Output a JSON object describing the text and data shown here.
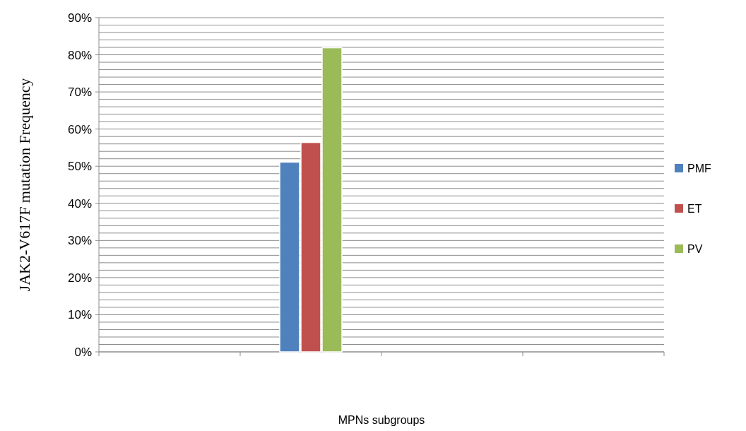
{
  "chart_data": {
    "type": "bar",
    "xlabel": "MPNs subgroups",
    "ylabel": "JAK2-V617F mutation Frequency",
    "categories": [
      null,
      null,
      null,
      null
    ],
    "series": [
      {
        "name": "PMF",
        "color": "#4f81bd",
        "values": [
          null,
          51.1,
          null,
          null
        ]
      },
      {
        "name": "ET",
        "color": "#c0504d",
        "values": [
          null,
          56.4,
          null,
          null
        ]
      },
      {
        "name": "PV",
        "color": "#9bbb59",
        "values": [
          null,
          81.9,
          null,
          null
        ]
      }
    ],
    "ylim": [
      0,
      90
    ],
    "yticks": [
      {
        "value": 0,
        "label": "0%"
      },
      {
        "value": 2,
        "label": null
      },
      {
        "value": 4,
        "label": null
      },
      {
        "value": 6,
        "label": null
      },
      {
        "value": 8,
        "label": null
      },
      {
        "value": 10,
        "label": "10%"
      },
      {
        "value": 12,
        "label": null
      },
      {
        "value": 14,
        "label": null
      },
      {
        "value": 16,
        "label": null
      },
      {
        "value": 18,
        "label": null
      },
      {
        "value": 20,
        "label": "20%"
      },
      {
        "value": 22,
        "label": null
      },
      {
        "value": 24,
        "label": null
      },
      {
        "value": 26,
        "label": null
      },
      {
        "value": 28,
        "label": null
      },
      {
        "value": 30,
        "label": "30%"
      },
      {
        "value": 32,
        "label": null
      },
      {
        "value": 34,
        "label": null
      },
      {
        "value": 36,
        "label": null
      },
      {
        "value": 38,
        "label": null
      },
      {
        "value": 40,
        "label": "40%"
      },
      {
        "value": 42,
        "label": null
      },
      {
        "value": 44,
        "label": null
      },
      {
        "value": 46,
        "label": null
      },
      {
        "value": 48,
        "label": null
      },
      {
        "value": 50,
        "label": "50%"
      },
      {
        "value": 52,
        "label": null
      },
      {
        "value": 54,
        "label": null
      },
      {
        "value": 56,
        "label": null
      },
      {
        "value": 58,
        "label": null
      },
      {
        "value": 60,
        "label": "60%"
      },
      {
        "value": 62,
        "label": null
      },
      {
        "value": 64,
        "label": null
      },
      {
        "value": 66,
        "label": null
      },
      {
        "value": 68,
        "label": null
      },
      {
        "value": 70,
        "label": "70%"
      },
      {
        "value": 72,
        "label": null
      },
      {
        "value": 74,
        "label": null
      },
      {
        "value": 76,
        "label": null
      },
      {
        "value": 78,
        "label": null
      },
      {
        "value": 80,
        "label": "80%"
      },
      {
        "value": 82,
        "label": null
      },
      {
        "value": 84,
        "label": null
      },
      {
        "value": 86,
        "label": null
      },
      {
        "value": 88,
        "label": null
      },
      {
        "value": 90,
        "label": "90%"
      }
    ],
    "grid": "y",
    "legend": "right"
  }
}
